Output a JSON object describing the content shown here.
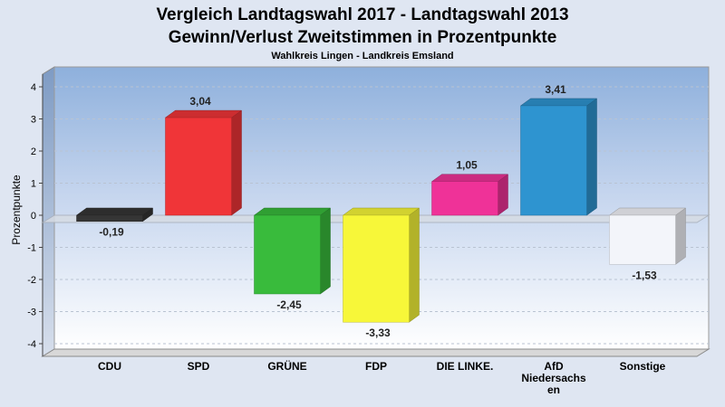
{
  "chart_data": {
    "type": "bar",
    "title": "Vergleich Landtagswahl 2017 - Landtagswahl 2013",
    "title2": "Gewinn/Verlust Zweitstimmen in Prozentpunkte",
    "subtitle": "Wahlkreis Lingen - Landkreis Emsland",
    "ylabel": "Prozentpunkte",
    "xlabel": "",
    "ylim": [
      -4,
      4
    ],
    "yticks": [
      "-4",
      "-3",
      "-2",
      "-1",
      "0",
      "1",
      "2",
      "3",
      "4"
    ],
    "grid": true,
    "categories": [
      "CDU",
      "SPD",
      "GRÜNE",
      "FDP",
      "DIE LINKE.",
      "AfD Niedersachsen",
      "Sonstige"
    ],
    "category_lines": [
      [
        "CDU"
      ],
      [
        "SPD"
      ],
      [
        "GRÜNE"
      ],
      [
        "FDP"
      ],
      [
        "DIE LINKE."
      ],
      [
        "AfD",
        "Niedersachs",
        "en"
      ],
      [
        "Sonstige"
      ]
    ],
    "values": [
      -0.19,
      3.04,
      -2.45,
      -3.33,
      1.05,
      3.41,
      -1.53
    ],
    "value_labels": [
      "-0,19",
      "3,04",
      "-2,45",
      "-3,33",
      "1,05",
      "3,41",
      "-1,53"
    ],
    "colors": [
      "#353535",
      "#f03538",
      "#39bb3c",
      "#f7f739",
      "#ef3298",
      "#2e94d0",
      "#f3f5fa"
    ]
  }
}
